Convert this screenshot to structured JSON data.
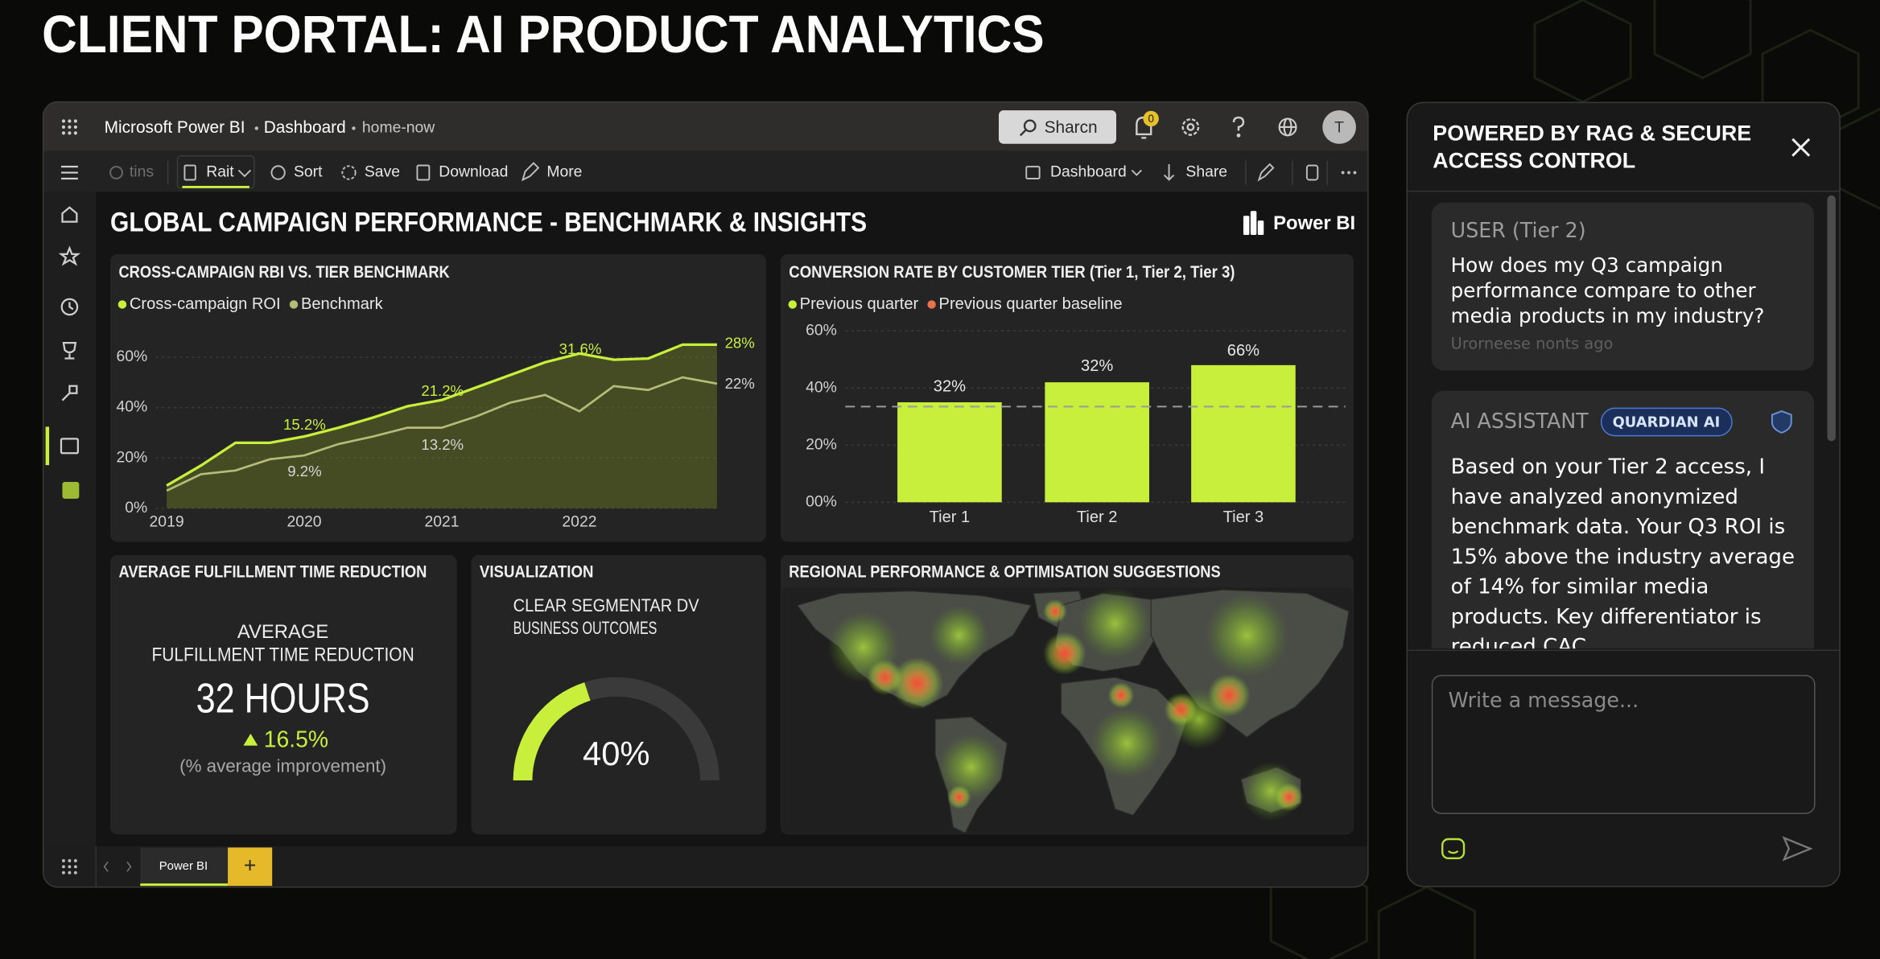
{
  "page_title": "CLIENT PORTAL: AI PRODUCT ANALYTICS",
  "window": {
    "app": "Microsoft Power BI",
    "breadcrumb": "Dashboard",
    "workspace": "home-now",
    "search": "Sharcn",
    "notifications": 0,
    "avatar": "T"
  },
  "toolbar": {
    "left": [
      "tins",
      "Rait",
      "Sort",
      "Save",
      "Download",
      "More"
    ],
    "right": [
      "Dashboard",
      "Share"
    ]
  },
  "report": {
    "title": "GLOBAL CAMPAIGN PERFORMANCE - BENCHMARK & INSIGHTS",
    "brand": "Power BI"
  },
  "chart_data": [
    {
      "type": "line",
      "title": "CROSS-CAMPAIGN RBI VS. TIER BENCHMARK",
      "x": [
        2019,
        2019.25,
        2019.5,
        2019.75,
        2020,
        2020.25,
        2020.5,
        2020.75,
        2021,
        2021.25,
        2021.5,
        2021.75,
        2022,
        2022.25,
        2022.5,
        2022.75,
        2023
      ],
      "series": [
        {
          "name": "Cross-campaign ROI",
          "color": "#c8ef3c",
          "values": [
            9,
            17,
            26,
            26,
            28.5,
            32,
            36,
            40.5,
            43,
            48,
            53,
            58,
            61.5,
            59,
            59.5,
            65,
            65
          ]
        },
        {
          "name": "Benchmark",
          "color": "#b4bd78",
          "values": [
            7,
            13.5,
            15,
            19.5,
            21,
            25.5,
            28.5,
            32,
            32,
            36.5,
            42,
            45,
            38.5,
            48.5,
            47,
            52,
            49.5
          ]
        }
      ],
      "xlim": [
        2019,
        2023
      ],
      "xticks": [
        2019,
        2020,
        2021,
        2022
      ],
      "ylim": [
        0,
        65
      ],
      "yticks": [
        {
          "value": 0,
          "label": "0%"
        },
        {
          "value": 20,
          "label": "20%"
        },
        {
          "value": 40,
          "label": "40%"
        },
        {
          "value": 60,
          "label": "60%"
        }
      ],
      "annotations": [
        "15.2%",
        "21.2%",
        "31.6%",
        "28%",
        "9.2%",
        "13.2%",
        "22%"
      ],
      "grid": true
    },
    {
      "type": "bar",
      "title": "CONVERSION RATE BY CUSTOMER TIER (Tier 1, Tier 2, Tier 3)",
      "categories": [
        "Tier 1",
        "Tier 2",
        "Tier 3"
      ],
      "series": [
        {
          "name": "Previous quarter",
          "color": "#c8ef3c",
          "values": [
            35,
            42,
            48
          ]
        }
      ],
      "baseline": {
        "name": "Previous quarter baseline",
        "color": "#e8714a",
        "value": 33.5
      },
      "ylim": [
        0,
        60
      ],
      "yticks": [
        {
          "value": 0,
          "label": "00%"
        },
        {
          "value": 20,
          "label": "20%"
        },
        {
          "value": 40,
          "label": "40%"
        },
        {
          "value": 60,
          "label": "60%"
        }
      ],
      "annotations": [
        "32%",
        "32%",
        "66%"
      ],
      "grid": true
    },
    {
      "type": "gauge",
      "title": "VISUALIZATION",
      "subtitle": [
        "CLEAR SEGMENTAR DV",
        "BUSINESS OUTCOMES"
      ],
      "values": [
        40
      ],
      "value_labels": [
        "40%"
      ],
      "ylim": [
        0,
        100
      ],
      "color": "#c8ef3c"
    }
  ],
  "kpi": {
    "title": "AVERAGE FULFILLMENT TIME REDUCTION",
    "label": [
      "AVERAGE",
      "FULFILLMENT TIME REDUCTION"
    ],
    "value": "32 HOURS",
    "change": "16.5%",
    "note": "(% average improvement)"
  },
  "map": {
    "title": "REGIONAL PERFORMANCE & OPTIMISATION SUGGESTIONS"
  },
  "tabs": {
    "pages": [
      "Power BI"
    ],
    "add": "+"
  },
  "chat": {
    "title": "POWERED BY RAG & SECURE ACCESS CONTROL",
    "messages": [
      {
        "role": "USER (Tier 2)",
        "text": "How does my Q3 campaign performance compare to other media products in my industry?",
        "time": "Urorneese nonts ago"
      },
      {
        "role": "AI ASSISTANT",
        "badge": "QUARDIAN AI",
        "text": "Based on your Tier 2 access, I have analyzed anonymized benchmark data. Your Q3 ROI is 15% above the industry average of 14% for similar media products. Key differentiator is reduced CAC,"
      }
    ],
    "placeholder": "Write a message..."
  }
}
